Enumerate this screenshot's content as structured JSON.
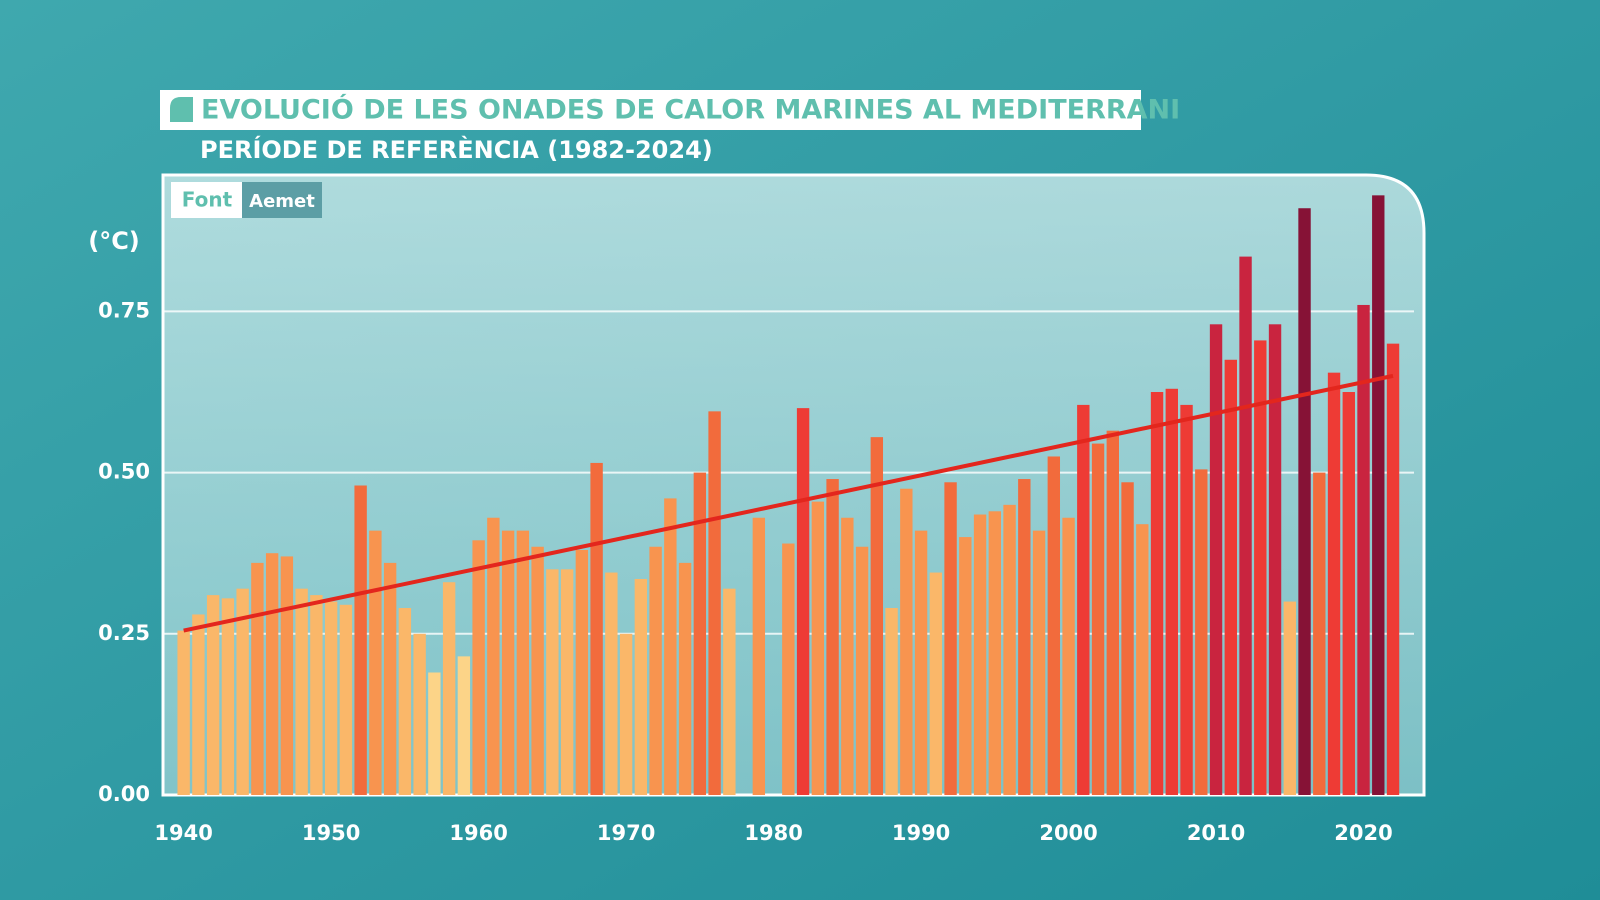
{
  "chart_data": {
    "type": "bar",
    "title": "EVOLUCIÓ DE LES ONADES DE CALOR MARINES AL MEDITERRANI",
    "subtitle": "PERÍODE DE REFERÈNCIA (1982-2024)",
    "source_label": "Font",
    "source": "Aemet",
    "y_label": "(°C)",
    "x": [
      1940,
      1941,
      1942,
      1943,
      1944,
      1945,
      1946,
      1947,
      1948,
      1949,
      1950,
      1951,
      1952,
      1953,
      1954,
      1955,
      1956,
      1957,
      1958,
      1959,
      1960,
      1961,
      1962,
      1963,
      1964,
      1965,
      1966,
      1967,
      1968,
      1969,
      1970,
      1971,
      1972,
      1973,
      1974,
      1975,
      1976,
      1977,
      1978,
      1979,
      1980,
      1981,
      1982,
      1983,
      1984,
      1985,
      1986,
      1987,
      1988,
      1989,
      1990,
      1991,
      1992,
      1993,
      1994,
      1995,
      1996,
      1997,
      1998,
      1999,
      2000,
      2001,
      2002,
      2003,
      2004,
      2005,
      2006,
      2007,
      2008,
      2009,
      2010,
      2011,
      2012,
      2013,
      2014,
      2015,
      2016,
      2017,
      2018,
      2019,
      2020,
      2021,
      2022
    ],
    "values": [
      0.255,
      0.28,
      0.31,
      0.305,
      0.32,
      0.36,
      0.375,
      0.37,
      0.32,
      0.31,
      0.3,
      0.295,
      0.48,
      0.41,
      0.36,
      0.29,
      0.25,
      0.19,
      0.33,
      0.215,
      0.395,
      0.43,
      0.41,
      0.41,
      0.385,
      0.35,
      0.35,
      0.38,
      0.515,
      0.345,
      0.25,
      0.335,
      0.385,
      0.46,
      0.36,
      0.5,
      0.595,
      0.32,
      null,
      0.43,
      null,
      0.39,
      0.6,
      0.455,
      0.49,
      0.43,
      0.385,
      0.555,
      0.29,
      0.475,
      0.41,
      0.345,
      0.485,
      0.4,
      0.435,
      0.44,
      0.45,
      0.49,
      0.41,
      0.525,
      0.43,
      0.605,
      0.545,
      0.565,
      0.485,
      0.42,
      0.625,
      0.63,
      0.605,
      0.505,
      0.73,
      0.675,
      0.835,
      0.705,
      0.73,
      0.3,
      0.91,
      0.5,
      0.655,
      0.625,
      0.76,
      0.93,
      0.7
    ],
    "color_scale": [
      "#fbe7a8",
      "#fcd488",
      "#fab769",
      "#f8944f",
      "#f26b3c",
      "#ee3b35",
      "#c9243f",
      "#861236"
    ],
    "trend": {
      "x": [
        1940,
        2022
      ],
      "values": [
        0.255,
        0.65
      ],
      "color": "#e3261d"
    },
    "xlim": [
      1938.6,
      2024.1
    ],
    "xticks": [
      1940,
      1950,
      1960,
      1970,
      1980,
      1990,
      2000,
      2010,
      2020
    ],
    "ylim": [
      0,
      0.96
    ],
    "yticks": [
      {
        "value": 0,
        "label": "0.00"
      },
      0.25,
      {
        "value": 0.5,
        "label": "0.50"
      },
      0.75
    ],
    "grid": true
  }
}
